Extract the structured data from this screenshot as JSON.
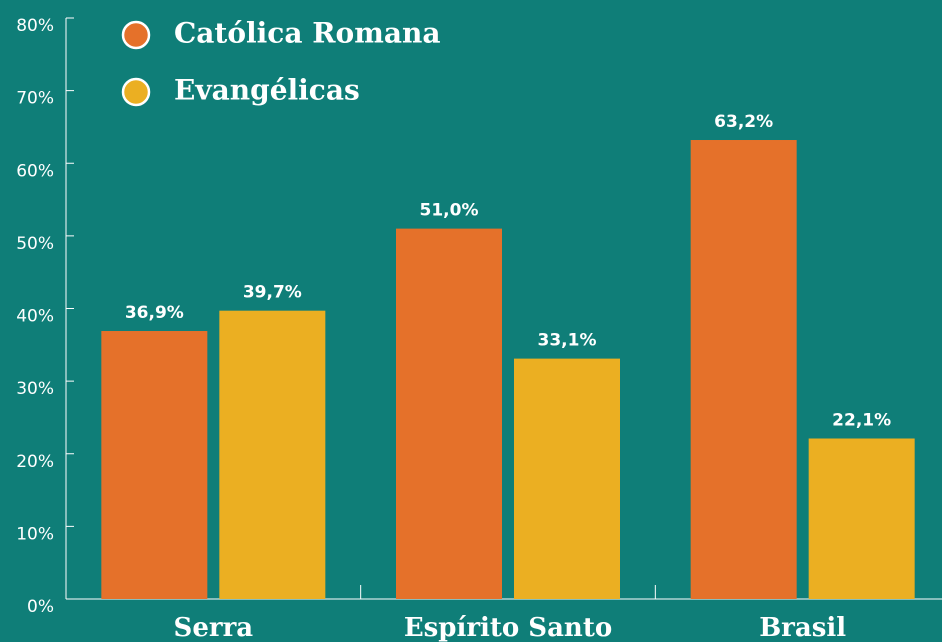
{
  "chart_data": {
    "type": "bar",
    "categories": [
      "Serra",
      "Espírito Santo",
      "Brasil"
    ],
    "series": [
      {
        "name": "Católica Romana",
        "color": "#e5712a",
        "values": [
          36.9,
          51.0,
          63.2
        ],
        "value_labels": [
          "36,9%",
          "51,0%",
          "63,2%"
        ]
      },
      {
        "name": "Evangélicas",
        "color": "#ebaf22",
        "values": [
          39.7,
          33.1,
          22.1
        ],
        "value_labels": [
          "39,7%",
          "33,1%",
          "22,1%"
        ]
      }
    ],
    "ylim": [
      0,
      80
    ],
    "yticks": [
      {
        "value": 0,
        "label": "0%"
      },
      {
        "value": 10,
        "label": "10%"
      },
      {
        "value": 20,
        "label": "20%"
      },
      {
        "value": 30,
        "label": "30%"
      },
      {
        "value": 40,
        "label": "40%"
      },
      {
        "value": 50,
        "label": "50%"
      },
      {
        "value": 60,
        "label": "60%"
      },
      {
        "value": 70,
        "label": "70%"
      },
      {
        "value": 80,
        "label": "80%"
      }
    ],
    "legend": "upper left"
  }
}
